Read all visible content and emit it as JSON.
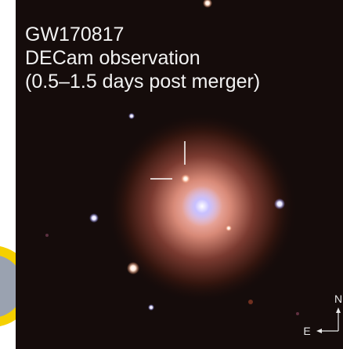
{
  "caption": {
    "lines": [
      "GW170817",
      "DECam observation",
      "(0.5–1.5 days post merger)"
    ]
  },
  "compass": {
    "north": "N",
    "east": "E"
  }
}
